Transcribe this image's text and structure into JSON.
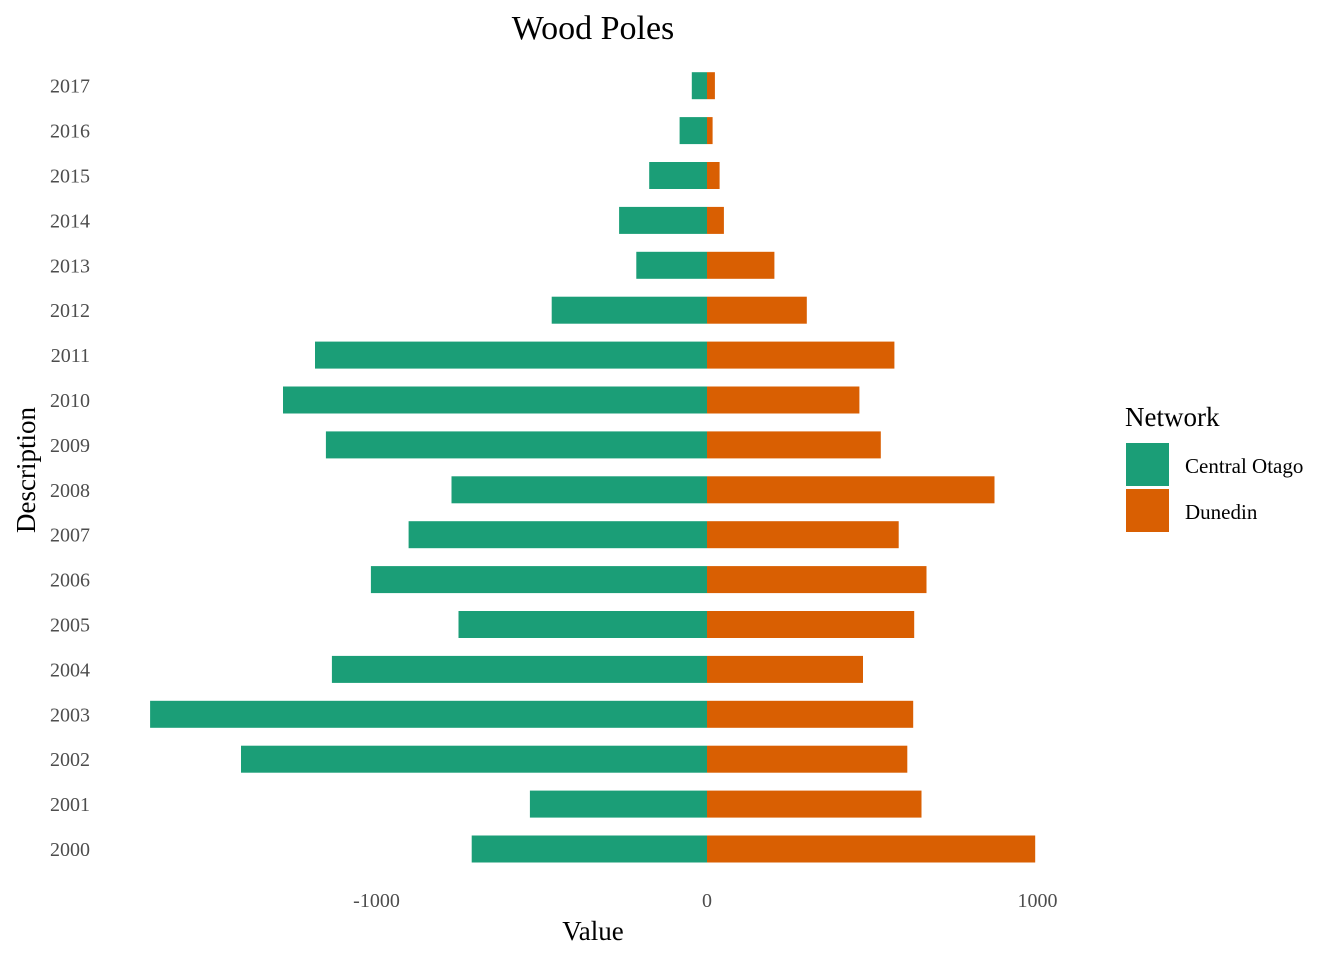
{
  "chart_data": {
    "type": "bar",
    "orientation": "horizontal",
    "stacking": "diverging",
    "title": "Wood Poles",
    "xlabel": "Value",
    "ylabel": "Description",
    "categories": [
      "2000",
      "2001",
      "2002",
      "2003",
      "2004",
      "2005",
      "2006",
      "2007",
      "2008",
      "2009",
      "2010",
      "2011",
      "2012",
      "2013",
      "2014",
      "2015",
      "2016",
      "2017"
    ],
    "series": [
      {
        "name": "Central Otago",
        "color": "#1b9e77",
        "values": [
          -712,
          -536,
          -1410,
          -1685,
          -1135,
          -752,
          -1017,
          -903,
          -773,
          -1153,
          -1283,
          -1186,
          -470,
          -214,
          -266,
          -175,
          -83,
          -46
        ]
      },
      {
        "name": "Dunedin",
        "color": "#d95f02",
        "values": [
          993,
          649,
          606,
          624,
          472,
          627,
          664,
          580,
          870,
          526,
          461,
          567,
          302,
          204,
          51,
          38,
          17,
          24
        ]
      }
    ],
    "xticks": [
      -1000,
      0,
      1000
    ],
    "xtick_labels": [
      "-1000",
      "0",
      "1000"
    ],
    "xlim": [
      -1800,
      1050
    ],
    "grid": false,
    "legend": {
      "title": "Network",
      "position": "right",
      "entries": [
        "Central Otago",
        "Dunedin"
      ]
    }
  }
}
